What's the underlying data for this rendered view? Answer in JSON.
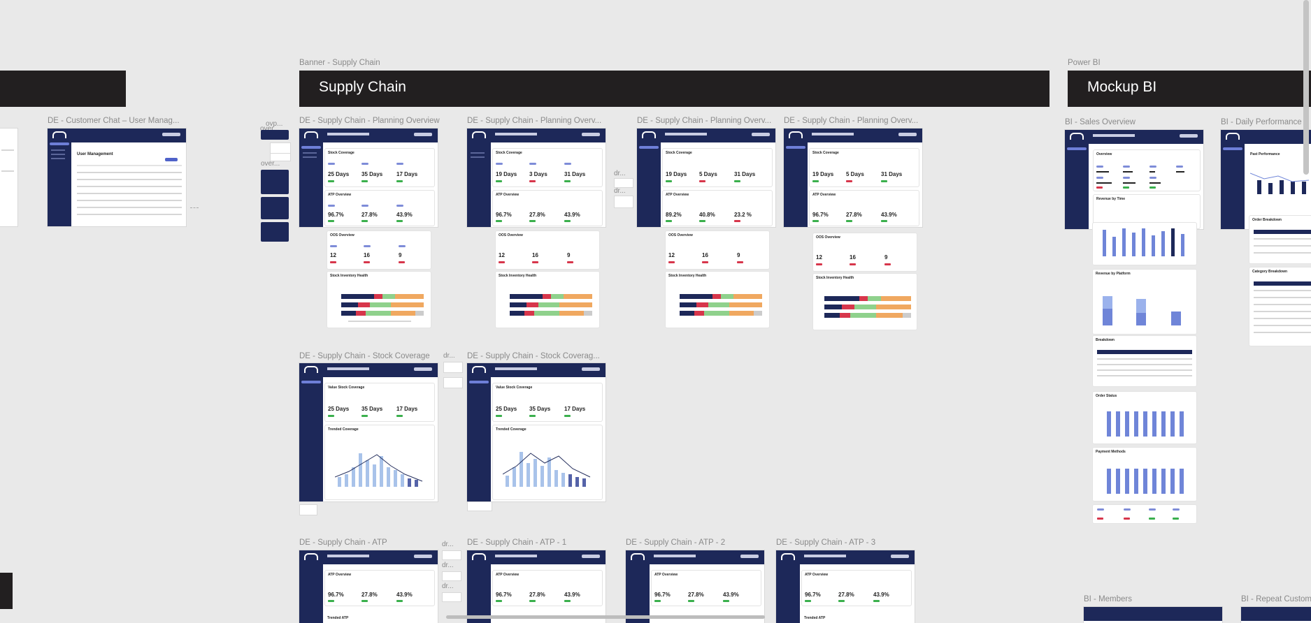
{
  "banners": {
    "supply_chain": {
      "caption": "Banner - Supply Chain",
      "title": "Supply Chain"
    },
    "power_bi": {
      "caption": "Power BI",
      "title": "Mockup BI"
    }
  },
  "frames": {
    "customer_chat": "DE - Customer Chat – User Manag...",
    "planning_1": "DE - Supply Chain - Planning Overview",
    "planning_2": "DE - Supply Chain - Planning Overv...",
    "planning_3": "DE - Supply Chain - Planning Overv...",
    "planning_4": "DE - Supply Chain - Planning Overv...",
    "stock_coverage_1": "DE - Supply Chain - Stock Coverage",
    "stock_coverage_2": "DE - Supply Chain - Stock Coverag...",
    "atp_0": "DE - Supply Chain - ATP",
    "atp_1": "DE - Supply Chain - ATP - 1",
    "atp_2": "DE - Supply Chain - ATP - 2",
    "atp_3": "DE - Supply Chain - ATP - 3",
    "bi_sales": "BI - Sales Overview",
    "bi_daily": "BI -  Daily Performance",
    "bi_members": "BI - Members",
    "bi_repeat": "BI - Repeat Custom"
  },
  "fragments": {
    "ovp": "ovp...",
    "over_a": "over...",
    "over_b": "over...",
    "dr_1": "dr...",
    "dr_2": "dr...",
    "dr_3": "dr...",
    "dr_4": "dr...",
    "dr_5": "dr...",
    "dr_6": "dr..."
  },
  "cards": {
    "user_management": "User Management",
    "stock_coverage": "Stock Coverage",
    "atp_overview": "ATP Overview",
    "oos_overview": "OOS Overview",
    "stock_health": "Stock Inventory Health",
    "value_stock_coverage": "Value Stock Coverage",
    "trended_coverage": "Trended Coverage",
    "trended_atp": "Trended ATP",
    "atp_overview_short": "ATP Overview",
    "overview": "Overview",
    "revenue_by_time": "Revenue by Time",
    "revenue_by_platform": "Revenue by Platform",
    "breakdown": "Breakdown",
    "order_status": "Order Status",
    "payment_methods": "Payment Methods",
    "past_performance": "Past Performance",
    "category_breakdown": "Category Breakdown",
    "order_breakdown": "Order Breakdown"
  },
  "values": {
    "days_25": "25 Days",
    "days_35": "35 Days",
    "days_17": "17 Days",
    "days_19": "19 Days",
    "days_3": "3 Days",
    "days_31": "31 Days",
    "days_5": "5 Days",
    "pct_967": "96.7%",
    "pct_278": "27.8%",
    "pct_439": "43.9%",
    "pct_892": "89.2%",
    "pct_408": "40.8%",
    "pct_232": "23.2 %",
    "n_12": "12",
    "n_16": "16",
    "n_9": "9"
  },
  "colors": {
    "canvas": "#e9e9e9",
    "banner": "#221f20",
    "navy": "#1d2859",
    "accent": "#7e8cd8",
    "green": "#3bb04d",
    "red": "#d7364b",
    "orange": "#f0a860",
    "light_green": "#8fd18c"
  }
}
